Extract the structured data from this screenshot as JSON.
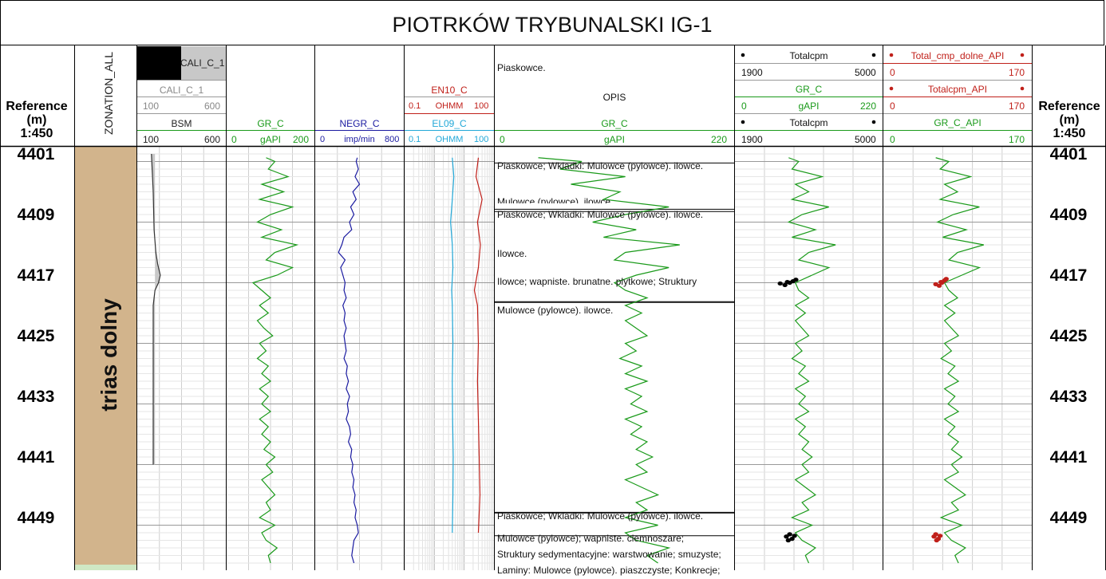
{
  "title": "PIOTRKÓW TRYBUNALSKI IG-1",
  "reference": {
    "line1": "Reference",
    "line2": "(m)",
    "line3": "1:450"
  },
  "zonation": {
    "header": "ZONATION_ALL",
    "zone_label": "trias dolny",
    "zone_color": "#d2b48c",
    "next_zone_color": "#cfe8c4"
  },
  "tracks": {
    "cali": {
      "name": "CALI_C_1",
      "name2": "CALI_C_1",
      "min": "100",
      "max": "600",
      "bsm": "BSM",
      "bsm_min": "100",
      "bsm_max": "600"
    },
    "gr": {
      "name": "GR_C",
      "min": "0",
      "unit": "gAPI",
      "max": "200",
      "color": "#1a9a1a"
    },
    "negr": {
      "name": "NEGR_C",
      "min": "0",
      "unit": "imp/min",
      "max": "800",
      "color": "#1a1aa0"
    },
    "res": {
      "en": "EN10_C",
      "en_min": "0.1",
      "en_unit": "OHMM",
      "en_max": "100",
      "en_color": "#c0201a",
      "el": "EL09_C",
      "el_min": "0.1",
      "el_unit": "OHMM",
      "el_max": "100",
      "el_color": "#22a8d8"
    },
    "opis": {
      "top": "Piaskowce.",
      "name": "OPIS",
      "gr": "GR_C",
      "min": "0",
      "unit": "gAPI",
      "max": "220"
    },
    "total": {
      "name": "Totalcpm",
      "min": "1900",
      "max": "5000",
      "gr": "GR_C",
      "gr_min": "0",
      "gr_unit": "gAPI",
      "gr_max": "220",
      "name2": "Totalcpm",
      "min2": "1900",
      "max2": "5000"
    },
    "api": {
      "name": "Total_cmp_dolne_API",
      "min": "0",
      "max": "170",
      "name2": "Totalcpm_API",
      "min2": "0",
      "max2": "170",
      "gr": "GR_C_API",
      "gr_min": "0",
      "gr_max": "170",
      "color": "#c0201a"
    }
  },
  "depth_ticks": [
    "4401",
    "4409",
    "4417",
    "4425",
    "4433",
    "4441",
    "4449"
  ],
  "descriptions": [
    "Piaskowce; Wkladki: Mulowce (pylowce). ilowce.",
    "Mulowce (pylowce). ilowce.",
    "Piaskowce; Wkladki: Mulowce (pylowce). ilowce.",
    "Ilowce.",
    "Ilowce; wapniste. brunatne. plytkowe; Struktury",
    "Mulowce (pylowce). ilowce.",
    "Piaskowce; Wkladki: Mulowce (pylowce). ilowce.",
    "Mulowce (pylowce); wapniste. ciemnoszare;",
    "Struktury sedymentacyjne: warstwowanie; smuzyste;",
    "Laminy: Mulowce (pylowce). piaszczyste; Konkrecje;"
  ],
  "chart_data": {
    "type": "line",
    "title": "PIOTRKÓW TRYBUNALSKI IG-1",
    "y_axis": {
      "label": "Reference (m)",
      "range": [
        4400,
        4456
      ],
      "ticks": [
        4401,
        4409,
        4417,
        4425,
        4433,
        4441,
        4449
      ],
      "inverted": true
    },
    "grid": true,
    "zones": [
      {
        "name": "trias dolny",
        "top": 4400,
        "bottom": 4456
      }
    ],
    "curves": [
      {
        "name": "CALI_C_1",
        "range": [
          100,
          600
        ],
        "depth": [
          4400,
          4405,
          4410,
          4413,
          4414.5,
          4416,
          4417,
          4418,
          4420,
          4425,
          4430,
          4435,
          4440,
          4441
        ],
        "values": [
          180,
          190,
          195,
          205,
          215,
          230,
          220,
          200,
          190,
          190,
          190,
          190,
          190,
          190
        ]
      },
      {
        "name": "GR_C",
        "range": [
          0,
          200
        ],
        "depth": [
          4400.5,
          4401,
          4402,
          4403,
          4404,
          4405,
          4406,
          4407,
          4408,
          4409,
          4410,
          4411,
          4412,
          4413,
          4414,
          4415,
          4416,
          4417,
          4418,
          4419,
          4420,
          4421,
          4422,
          4423,
          4424,
          4425,
          4426,
          4427,
          4428,
          4429,
          4430,
          4431,
          4432,
          4433,
          4434,
          4435,
          4436,
          4437,
          4438,
          4439,
          4440,
          4441,
          4442,
          4443,
          4444,
          4445,
          4446,
          4447,
          4448,
          4449,
          4450,
          4451,
          4452,
          4453,
          4454,
          4455
        ],
        "values": [
          90,
          110,
          95,
          140,
          80,
          130,
          75,
          150,
          100,
          70,
          125,
          80,
          160,
          110,
          90,
          150,
          115,
          60,
          80,
          100,
          75,
          95,
          70,
          85,
          105,
          75,
          90,
          70,
          95,
          80,
          100,
          75,
          95,
          80,
          100,
          75,
          95,
          80,
          100,
          85,
          110,
          90,
          105,
          80,
          95,
          110,
          90,
          100,
          75,
          110,
          80,
          90,
          115,
          95,
          100,
          85
        ]
      },
      {
        "name": "NEGR_C",
        "range": [
          0,
          800
        ],
        "depth": [
          4400.5,
          4401,
          4402,
          4403,
          4404,
          4405,
          4406,
          4407,
          4408,
          4409,
          4410,
          4411,
          4412,
          4413,
          4414,
          4415,
          4416,
          4417,
          4418,
          4419,
          4420,
          4421,
          4422,
          4423,
          4424,
          4425,
          4426,
          4427,
          4428,
          4429,
          4430,
          4431,
          4432,
          4433,
          4434,
          4435,
          4436,
          4437,
          4438,
          4439,
          4440,
          4441,
          4442,
          4443,
          4444,
          4445,
          4446,
          4447,
          4448,
          4449,
          4450,
          4451,
          4452,
          4453,
          4454,
          4455
        ],
        "values": [
          380,
          370,
          390,
          360,
          400,
          340,
          370,
          320,
          350,
          310,
          330,
          260,
          240,
          210,
          270,
          230,
          250,
          270,
          260,
          280,
          250,
          270,
          260,
          280,
          260,
          270,
          280,
          260,
          290,
          280,
          300,
          280,
          310,
          290,
          300,
          280,
          310,
          320,
          300,
          330,
          320,
          340,
          330,
          350,
          340,
          360,
          350,
          370,
          360,
          380,
          390,
          350,
          340,
          330,
          350,
          330
        ]
      },
      {
        "name": "EN10_C",
        "range": [
          0.1,
          100
        ],
        "scale": "log",
        "depth": [
          4400.5,
          4403,
          4406,
          4409,
          4412,
          4415,
          4418,
          4420,
          4425,
          4430,
          4435,
          4440,
          4445,
          4450,
          4455
        ],
        "values": [
          30,
          25,
          40,
          28,
          35,
          30,
          22,
          28,
          30,
          28,
          30,
          32,
          34,
          30,
          28
        ]
      },
      {
        "name": "EL09_C",
        "range": [
          0.1,
          100
        ],
        "scale": "log",
        "depth": [
          4400.5,
          4403,
          4406,
          4409,
          4412,
          4415,
          4418,
          4420,
          4425,
          4430,
          4435,
          4440,
          4445,
          4450,
          4455
        ],
        "values": [
          4,
          4.5,
          4,
          3.5,
          4,
          4.2,
          3.8,
          4,
          4.2,
          4,
          4.1,
          4.3,
          4.2,
          4,
          4.1
        ]
      },
      {
        "name": "GR_C",
        "track": "OPIS",
        "range": [
          0,
          220
        ],
        "depth": [
          4400.5,
          4401,
          4402,
          4403,
          4404,
          4405,
          4406,
          4407,
          4408,
          4409,
          4410,
          4411,
          4412,
          4413,
          4414,
          4415,
          4416,
          4417,
          4418,
          4419,
          4420,
          4421,
          4422,
          4423,
          4424,
          4425,
          4426,
          4427,
          4428,
          4429,
          4430,
          4431,
          4432,
          4433,
          4434,
          4435,
          4436,
          4437,
          4438,
          4439,
          4440,
          4441,
          4442,
          4443,
          4444,
          4445,
          4446,
          4447,
          4448,
          4449,
          4450,
          4451,
          4452,
          4453,
          4454,
          4455
        ],
        "values": [
          40,
          80,
          60,
          120,
          70,
          115,
          100,
          160,
          120,
          90,
          130,
          100,
          170,
          120,
          110,
          160,
          130,
          110,
          120,
          140,
          120,
          135,
          120,
          130,
          140,
          120,
          130,
          115,
          135,
          120,
          140,
          120,
          135,
          125,
          140,
          120,
          135,
          125,
          140,
          130,
          145,
          130,
          140,
          120,
          135,
          150,
          130,
          140,
          120,
          150,
          120,
          130,
          160,
          140,
          150,
          130
        ]
      },
      {
        "name": "GR_C",
        "track": "Totalcpm",
        "range": [
          0,
          220
        ],
        "depth": [
          4400.5,
          4401,
          4402,
          4403,
          4404,
          4405,
          4406,
          4407,
          4408,
          4409,
          4410,
          4411,
          4412,
          4413,
          4414,
          4415,
          4416,
          4417,
          4418,
          4419,
          4420,
          4421,
          4422,
          4423,
          4424,
          4425,
          4426,
          4427,
          4428,
          4429,
          4430,
          4431,
          4432,
          4433,
          4434,
          4435,
          4436,
          4437,
          4438,
          4439,
          4440,
          4441,
          4442,
          4443,
          4444,
          4445,
          4446,
          4447,
          4448,
          4449,
          4450,
          4451,
          4452,
          4453,
          4454,
          4455
        ],
        "values": [
          80,
          95,
          85,
          130,
          90,
          110,
          85,
          140,
          100,
          80,
          120,
          85,
          150,
          110,
          95,
          140,
          115,
          90,
          95,
          110,
          90,
          105,
          90,
          100,
          110,
          90,
          100,
          85,
          105,
          95,
          110,
          90,
          105,
          95,
          110,
          90,
          105,
          95,
          110,
          100,
          115,
          100,
          110,
          90,
          105,
          120,
          100,
          110,
          85,
          115,
          90,
          100,
          120,
          105,
          110,
          95
        ]
      },
      {
        "name": "GR_C_API",
        "range": [
          0,
          170
        ],
        "depth": [
          4400.5,
          4401,
          4402,
          4403,
          4404,
          4405,
          4406,
          4407,
          4408,
          4409,
          4410,
          4411,
          4412,
          4413,
          4414,
          4415,
          4416,
          4417,
          4418,
          4419,
          4420,
          4421,
          4422,
          4423,
          4424,
          4425,
          4426,
          4427,
          4428,
          4429,
          4430,
          4431,
          4432,
          4433,
          4434,
          4435,
          4436,
          4437,
          4438,
          4439,
          4440,
          4441,
          4442,
          4443,
          4444,
          4445,
          4446,
          4447,
          4448,
          4449,
          4450,
          4451,
          4452,
          4453,
          4454,
          4455
        ],
        "values": [
          60,
          75,
          65,
          100,
          70,
          85,
          65,
          110,
          80,
          62,
          95,
          68,
          115,
          85,
          75,
          110,
          90,
          70,
          75,
          85,
          70,
          82,
          70,
          78,
          86,
          70,
          78,
          66,
          82,
          74,
          86,
          70,
          82,
          74,
          86,
          70,
          82,
          74,
          86,
          78,
          90,
          78,
          86,
          70,
          82,
          94,
          78,
          86,
          66,
          90,
          70,
          78,
          94,
          82,
          86,
          74
        ]
      }
    ],
    "points": [
      {
        "name": "Totalcpm",
        "range": [
          1900,
          5000
        ],
        "depth": [
          4417.1,
          4417.3,
          4417.0,
          4416.8,
          4416.6,
          4416.9,
          4450.2,
          4450.5,
          4450.8,
          4451.0,
          4450.4
        ],
        "values": [
          2850,
          2950,
          3050,
          3120,
          3180,
          3000,
          3050,
          2980,
          3100,
          3020,
          3150
        ]
      },
      {
        "name": "Total_cmp_dolne_API",
        "range": [
          0,
          170
        ],
        "depth": [
          4417.2,
          4417.4,
          4417.0,
          4416.7,
          4416.5,
          4416.9,
          4450.2,
          4450.5,
          4450.8,
          4451.0,
          4450.4
        ],
        "values": [
          60,
          64,
          67,
          70,
          72,
          66,
          60,
          58,
          63,
          61,
          65
        ]
      }
    ]
  }
}
